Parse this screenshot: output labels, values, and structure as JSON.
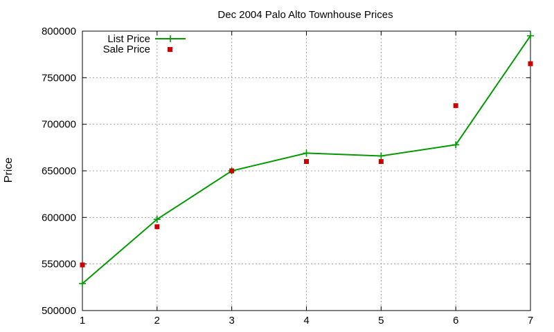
{
  "chart_data": {
    "type": "line",
    "title": "Dec 2004 Palo Alto Townhouse Prices",
    "xlabel": "",
    "ylabel": "Price",
    "xlim": [
      1,
      7
    ],
    "ylim": [
      500000,
      800000
    ],
    "x_ticks": [
      "1",
      "2",
      "3",
      "4",
      "5",
      "6",
      "7"
    ],
    "y_ticks": [
      "500000",
      "550000",
      "600000",
      "650000",
      "700000",
      "750000",
      "800000"
    ],
    "grid": true,
    "legend_position": "top-left",
    "series": [
      {
        "name": "List Price",
        "style": "line+cross",
        "color": "#009900",
        "x": [
          1,
          2,
          3,
          4,
          5,
          6,
          7
        ],
        "values": [
          529000,
          598000,
          650000,
          669000,
          666000,
          678000,
          795000
        ]
      },
      {
        "name": "Sale Price",
        "style": "square",
        "color": "#cc0000",
        "x": [
          1,
          2,
          3,
          4,
          5,
          6,
          7
        ],
        "values": [
          549000,
          590000,
          650000,
          660000,
          660000,
          720000,
          765000
        ]
      }
    ]
  }
}
